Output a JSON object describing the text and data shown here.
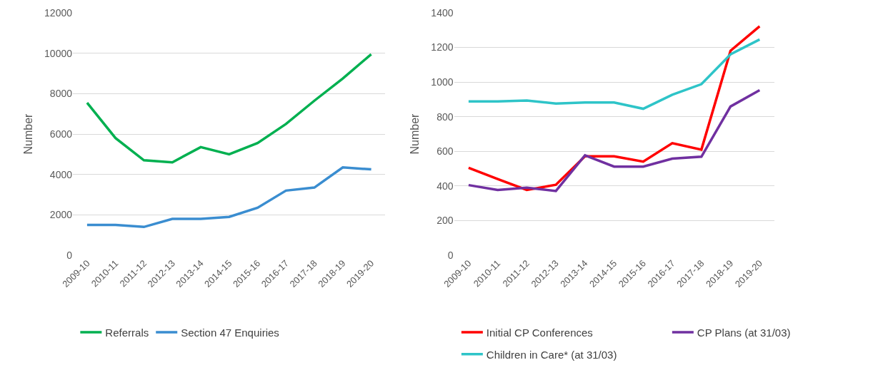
{
  "chart_data": [
    {
      "type": "line",
      "ylabel": "Number",
      "categories": [
        "2009-10",
        "2010-11",
        "2011-12",
        "2012-13",
        "2013-14",
        "2014-15",
        "2015-16",
        "2016-17",
        "2017-18",
        "2018-19",
        "2019-20"
      ],
      "ylim": [
        0,
        12000
      ],
      "yticks": [
        0,
        2000,
        4000,
        6000,
        8000,
        10000,
        12000
      ],
      "grid": "y",
      "legend": "bottom",
      "marker": "none",
      "series": [
        {
          "name": "Referrals",
          "color": "#00b050",
          "values": [
            7550,
            5800,
            4700,
            4600,
            5350,
            5000,
            5550,
            6500,
            7650,
            8750,
            9950
          ]
        },
        {
          "name": "Section 47 Enquiries",
          "color": "#3a8dd0",
          "values": [
            1500,
            1500,
            1400,
            1800,
            1800,
            1900,
            2350,
            3200,
            3350,
            4350,
            4250
          ]
        }
      ]
    },
    {
      "type": "line",
      "ylabel": "Number",
      "categories": [
        "2009-10",
        "2010-11",
        "2011-12",
        "2012-13",
        "2013-14",
        "2014-15",
        "2015-16",
        "2016-17",
        "2017-18",
        "2018-19",
        "2019-20"
      ],
      "ylim": [
        0,
        1400
      ],
      "yticks": [
        0,
        200,
        400,
        600,
        800,
        1000,
        1200,
        1400
      ],
      "grid": "y",
      "legend": "bottom",
      "marker": "none",
      "series": [
        {
          "name": "Initial CP Conferences",
          "color": "#ff0000",
          "values": [
            505,
            440,
            377,
            407,
            571,
            571,
            541,
            647,
            610,
            1181,
            1322
          ]
        },
        {
          "name": "CP Plans (at 31/03)",
          "color": "#7030a0",
          "values": [
            405,
            377,
            390,
            371,
            577,
            512,
            512,
            558,
            569,
            859,
            953
          ]
        },
        {
          "name": "Children in Care* (at 31/03)",
          "color": "#2ec4c8",
          "values": [
            888,
            888,
            894,
            876,
            882,
            882,
            846,
            927,
            988,
            1160,
            1246
          ]
        }
      ]
    }
  ]
}
